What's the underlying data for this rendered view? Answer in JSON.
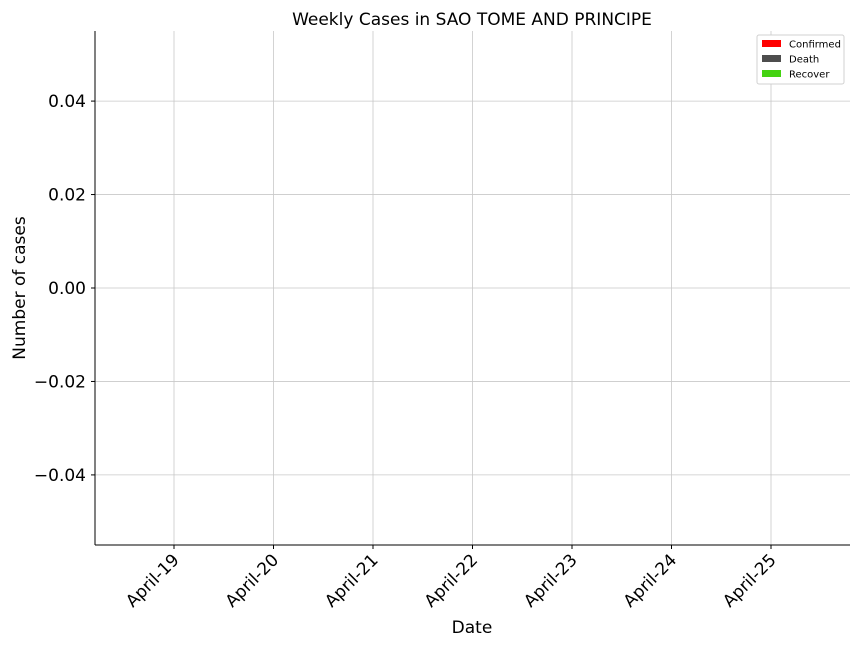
{
  "chart_data": {
    "type": "bar",
    "title": "Weekly Cases in SAO TOME AND PRINCIPE",
    "xlabel": "Date",
    "ylabel": "Number of cases",
    "categories": [
      "April-19",
      "April-20",
      "April-21",
      "April-22",
      "April-23",
      "April-24",
      "April-25"
    ],
    "series": [
      {
        "name": "Confirmed",
        "color": "#ff0000",
        "values": [
          0,
          0,
          0,
          0,
          0,
          0,
          0
        ]
      },
      {
        "name": "Death",
        "color": "#4d4d4d",
        "values": [
          0,
          0,
          0,
          0,
          0,
          0,
          0
        ]
      },
      {
        "name": "Recover",
        "color": "#44d311",
        "values": [
          0,
          0,
          0,
          0,
          0,
          0,
          0
        ]
      }
    ],
    "ylim": [
      -0.055,
      0.055
    ],
    "yticks": [
      -0.04,
      -0.02,
      0.0,
      0.02,
      0.04
    ],
    "ytick_labels": [
      "−0.04",
      "−0.02",
      "0.00",
      "0.02",
      "0.04"
    ],
    "grid": true,
    "legend_position": "top-right"
  }
}
